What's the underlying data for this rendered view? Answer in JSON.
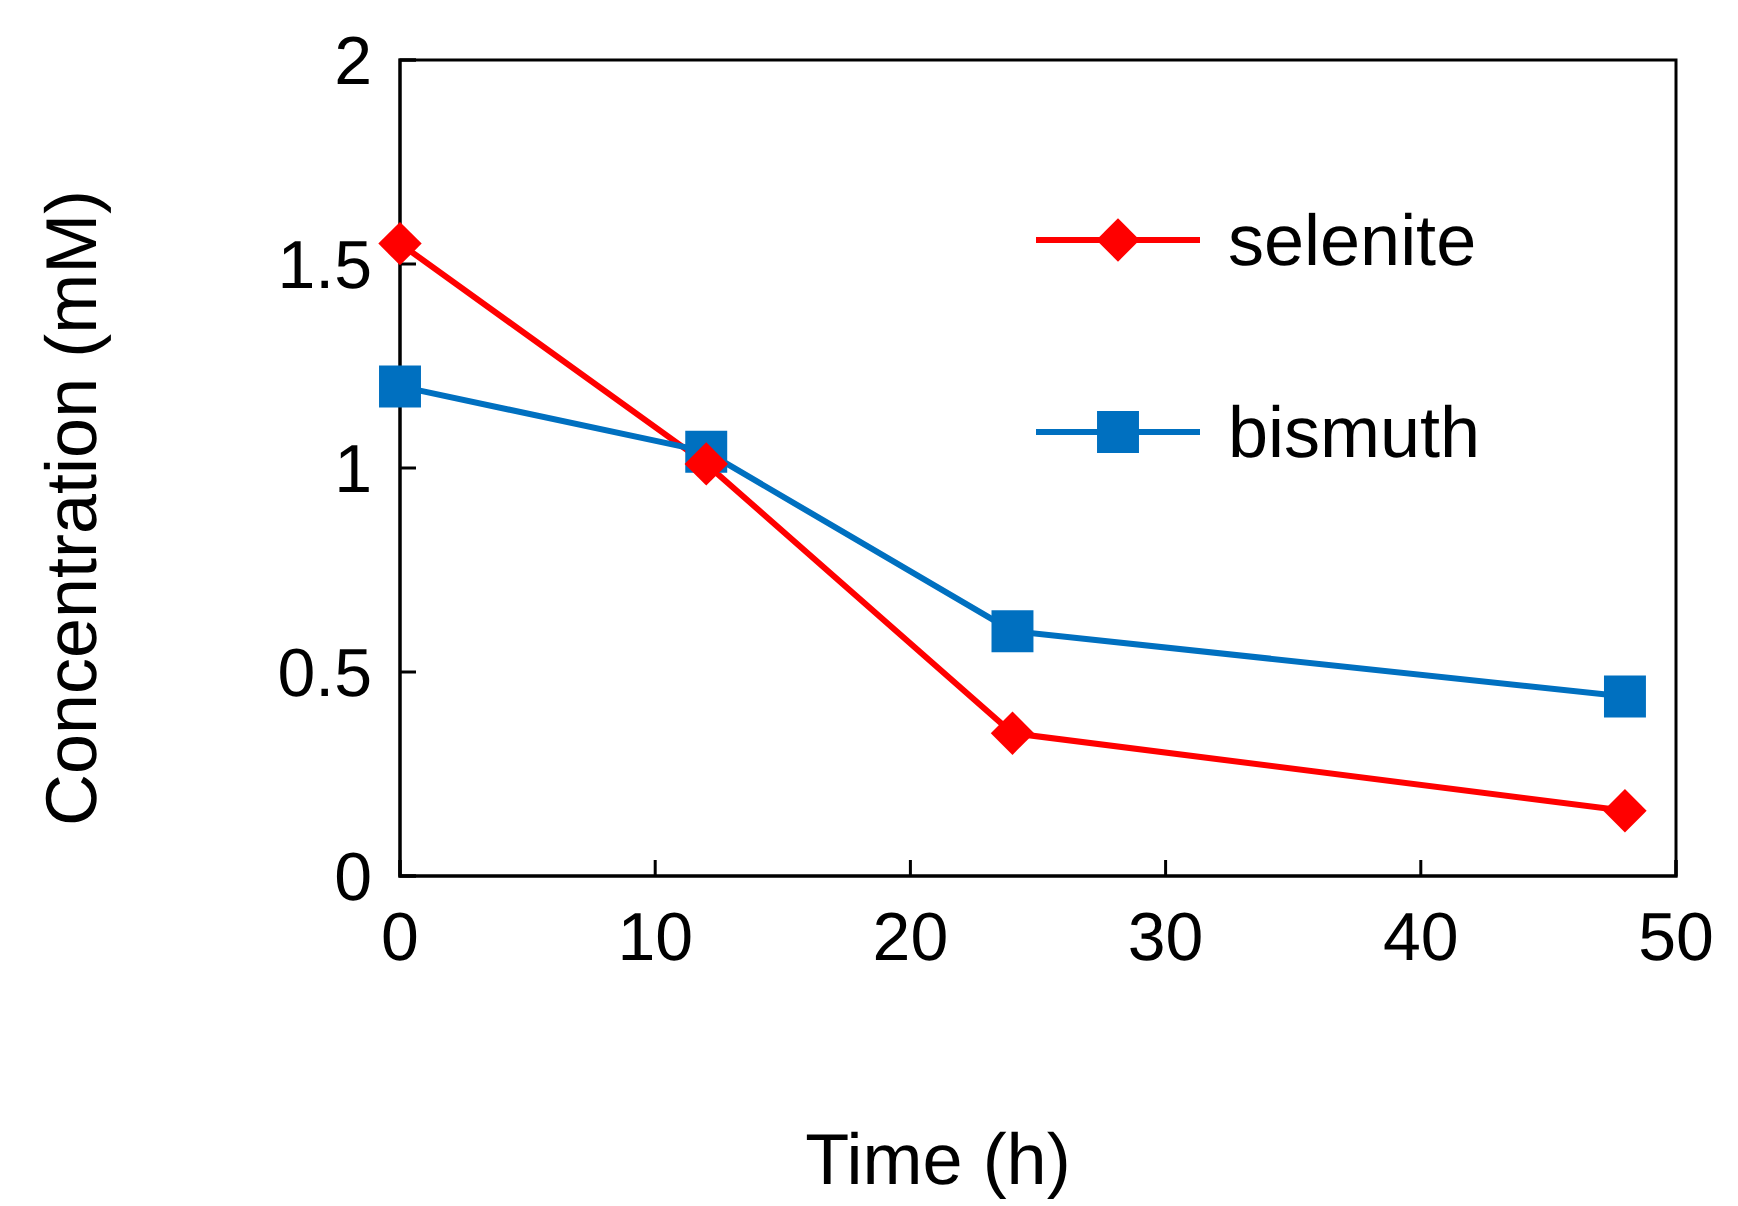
{
  "chart_data": {
    "type": "line",
    "xlabel": "Time (h)",
    "ylabel": "Concentration (mM)",
    "x": [
      0,
      12,
      24,
      48
    ],
    "series": [
      {
        "name": "selenite",
        "color": "#ff0000",
        "marker": "diamond",
        "values": [
          1.55,
          1.01,
          0.35,
          0.16
        ]
      },
      {
        "name": "bismuth",
        "color": "#0070c0",
        "marker": "square",
        "values": [
          1.2,
          1.04,
          0.6,
          0.44
        ]
      }
    ],
    "xlim": [
      0,
      50
    ],
    "xticks": [
      0,
      10,
      20,
      30,
      40,
      50
    ],
    "ylim": [
      0,
      2
    ],
    "yticks": [
      0,
      0.5,
      1,
      1.5,
      2
    ],
    "grid": false,
    "legend": "top right",
    "line_style": "solid"
  }
}
